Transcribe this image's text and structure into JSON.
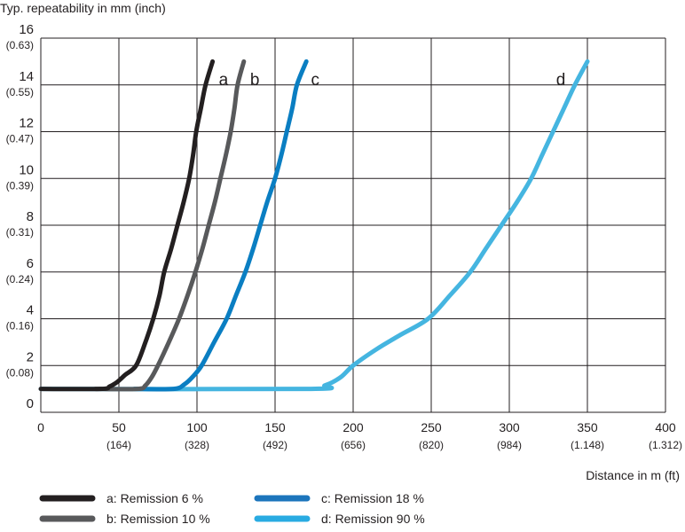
{
  "chart_data": {
    "type": "line",
    "title": "Typ. repeatability in mm (inch)",
    "xlabel": "Distance in m (ft)",
    "ylabel": "Typ. repeatability in mm (inch)",
    "xlim": [
      0,
      400
    ],
    "ylim": [
      0,
      16
    ],
    "grid": true,
    "x_ticks": [
      {
        "value": 0,
        "label": "0",
        "sub": ""
      },
      {
        "value": 50,
        "label": "50",
        "sub": "(164)"
      },
      {
        "value": 100,
        "label": "100",
        "sub": "(328)"
      },
      {
        "value": 150,
        "label": "150",
        "sub": "(492)"
      },
      {
        "value": 200,
        "label": "200",
        "sub": "(656)"
      },
      {
        "value": 250,
        "label": "250",
        "sub": "(820)"
      },
      {
        "value": 300,
        "label": "300",
        "sub": "(984)"
      },
      {
        "value": 350,
        "label": "350",
        "sub": "(1.148)"
      },
      {
        "value": 400,
        "label": "400",
        "sub": "(1.312)"
      }
    ],
    "y_ticks": [
      {
        "value": 0,
        "label": "0",
        "sub": ""
      },
      {
        "value": 2,
        "label": "2",
        "sub": "(0.08)"
      },
      {
        "value": 4,
        "label": "4",
        "sub": "(0.16)"
      },
      {
        "value": 6,
        "label": "6",
        "sub": "(0.24)"
      },
      {
        "value": 8,
        "label": "8",
        "sub": "(0.31)"
      },
      {
        "value": 10,
        "label": "10",
        "sub": "(0.39)"
      },
      {
        "value": 12,
        "label": "12",
        "sub": "(0.47)"
      },
      {
        "value": 14,
        "label": "14",
        "sub": "(0.55)"
      },
      {
        "value": 16,
        "label": "16",
        "sub": "(0.63)"
      }
    ],
    "series": [
      {
        "id": "d",
        "name": "d: Remission 90 %",
        "color": "#45b5e0",
        "legend_color": "#29abe2",
        "points": [
          [
            0,
            1
          ],
          [
            170,
            1
          ],
          [
            182,
            1.15
          ],
          [
            192,
            1.5
          ],
          [
            200,
            2
          ],
          [
            215,
            2.7
          ],
          [
            230,
            3.3
          ],
          [
            248,
            4
          ],
          [
            262,
            5
          ],
          [
            275,
            6
          ],
          [
            285,
            7
          ],
          [
            295,
            8
          ],
          [
            305,
            9
          ],
          [
            314,
            10
          ],
          [
            321,
            11
          ],
          [
            328,
            12
          ],
          [
            335,
            13
          ],
          [
            342,
            14
          ],
          [
            350,
            15
          ]
        ]
      },
      {
        "id": "c",
        "name": "c: Remission 18 %",
        "color": "#0a7ec2",
        "legend_color": "#1c75bc",
        "points": [
          [
            60,
            1
          ],
          [
            85,
            1
          ],
          [
            92,
            1.2
          ],
          [
            97,
            1.5
          ],
          [
            103,
            2
          ],
          [
            111,
            3
          ],
          [
            119,
            4
          ],
          [
            125,
            5
          ],
          [
            131,
            6
          ],
          [
            136,
            7
          ],
          [
            140.5,
            8
          ],
          [
            145,
            9
          ],
          [
            150,
            10
          ],
          [
            154,
            11
          ],
          [
            157.5,
            12
          ],
          [
            161,
            13
          ],
          [
            164,
            14
          ],
          [
            170,
            15
          ]
        ]
      },
      {
        "id": "b",
        "name": "b: Remission 10 %",
        "color": "#58595b",
        "legend_color": "#58595b",
        "points": [
          [
            35,
            1
          ],
          [
            62,
            1
          ],
          [
            67,
            1.15
          ],
          [
            71,
            1.5
          ],
          [
            75,
            2
          ],
          [
            82,
            3
          ],
          [
            88.5,
            4
          ],
          [
            94,
            5
          ],
          [
            99,
            6
          ],
          [
            103.5,
            7
          ],
          [
            107.5,
            8
          ],
          [
            111.5,
            9
          ],
          [
            115,
            10
          ],
          [
            118.5,
            11
          ],
          [
            121.6,
            12
          ],
          [
            124,
            13
          ],
          [
            126,
            14
          ],
          [
            130,
            15
          ]
        ]
      },
      {
        "id": "a",
        "name": "a: Remission 6 %",
        "color": "#231f20",
        "legend_color": "#231f20",
        "points": [
          [
            0,
            1
          ],
          [
            38,
            1
          ],
          [
            44,
            1.1
          ],
          [
            49,
            1.3
          ],
          [
            54,
            1.6
          ],
          [
            61,
            2
          ],
          [
            67,
            3
          ],
          [
            72,
            4
          ],
          [
            76,
            5
          ],
          [
            79,
            6
          ],
          [
            83.5,
            7
          ],
          [
            87.5,
            8
          ],
          [
            91.5,
            9
          ],
          [
            95,
            10
          ],
          [
            97.5,
            11
          ],
          [
            99.5,
            12
          ],
          [
            102.5,
            13
          ],
          [
            105.5,
            14
          ],
          [
            110,
            15
          ]
        ]
      }
    ],
    "curve_labels": [
      {
        "id": "a",
        "text": "a",
        "x": 114,
        "y": 14
      },
      {
        "id": "b",
        "text": "b",
        "x": 134,
        "y": 14
      },
      {
        "id": "c",
        "text": "c",
        "x": 173,
        "y": 14
      },
      {
        "id": "d",
        "text": "d",
        "x": 330,
        "y": 14
      }
    ],
    "legend_placement": "bottom-left"
  }
}
